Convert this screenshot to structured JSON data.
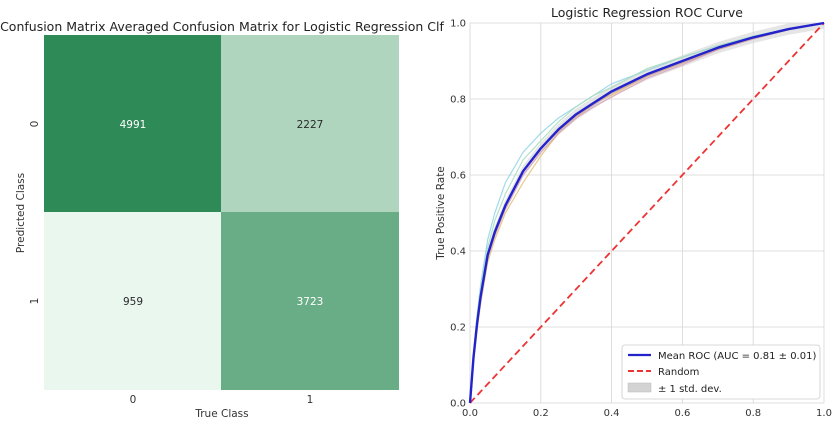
{
  "chart_data": [
    {
      "type": "heatmap",
      "title": "Confusion Matrix Averaged Confusion Matrix for Logistic Regression Clf",
      "xlabel": "True Class",
      "ylabel": "Predicted Class",
      "x_categories": [
        "0",
        "1"
      ],
      "y_categories": [
        "0",
        "1"
      ],
      "values": [
        [
          4991,
          2227
        ],
        [
          959,
          3723
        ]
      ],
      "colormap": "greens",
      "colors": {
        "high": "#2e8b57",
        "low": "#eaf7ef",
        "dark_text": "#2a2a2a",
        "light_text": "#ffffff"
      }
    },
    {
      "type": "line",
      "title": "Logistic Regression ROC Curve",
      "xlabel": "",
      "ylabel": "True Positive Rate",
      "xlim": [
        0.0,
        1.0
      ],
      "ylim": [
        0.0,
        1.0
      ],
      "xticks": [
        "0.0",
        "0.2",
        "0.4",
        "0.6",
        "0.8",
        "1.0"
      ],
      "yticks": [
        "0.0",
        "0.2",
        "0.4",
        "0.6",
        "0.8",
        "1.0"
      ],
      "grid": true,
      "legend_position": "bottom-right",
      "x": [
        0.0,
        0.01,
        0.02,
        0.03,
        0.05,
        0.07,
        0.1,
        0.15,
        0.2,
        0.25,
        0.3,
        0.35,
        0.4,
        0.5,
        0.6,
        0.7,
        0.8,
        0.9,
        1.0
      ],
      "series": [
        {
          "name": "Mean ROC (AUC = 0.81 ± 0.01)",
          "color": "#2323cc",
          "style": "solid",
          "y": [
            0.0,
            0.12,
            0.21,
            0.28,
            0.39,
            0.45,
            0.52,
            0.61,
            0.67,
            0.72,
            0.76,
            0.79,
            0.82,
            0.865,
            0.9,
            0.935,
            0.962,
            0.984,
            1.0
          ]
        },
        {
          "name": "Random",
          "color": "#ee3333",
          "style": "dashed",
          "y": [
            0.0,
            0.01,
            0.02,
            0.03,
            0.05,
            0.07,
            0.1,
            0.15,
            0.2,
            0.25,
            0.3,
            0.35,
            0.4,
            0.5,
            0.6,
            0.7,
            0.8,
            0.9,
            1.0
          ]
        }
      ],
      "std_band": {
        "name": "± 1 std. dev.",
        "color": "#d3d3d3",
        "delta": 0.015
      },
      "fold_curves": [
        {
          "color": "#8fd3e6",
          "y": [
            0.0,
            0.13,
            0.23,
            0.31,
            0.43,
            0.5,
            0.58,
            0.66,
            0.71,
            0.75,
            0.78,
            0.81,
            0.84,
            0.875,
            0.91,
            0.94,
            0.965,
            0.985,
            1.0
          ]
        },
        {
          "color": "#a8dcc0",
          "y": [
            0.0,
            0.12,
            0.22,
            0.3,
            0.41,
            0.48,
            0.55,
            0.64,
            0.69,
            0.74,
            0.78,
            0.81,
            0.83,
            0.88,
            0.91,
            0.94,
            0.965,
            0.985,
            1.0
          ]
        },
        {
          "color": "#e3c27a",
          "y": [
            0.0,
            0.11,
            0.19,
            0.26,
            0.37,
            0.43,
            0.5,
            0.58,
            0.65,
            0.71,
            0.75,
            0.79,
            0.81,
            0.86,
            0.895,
            0.93,
            0.96,
            0.982,
            1.0
          ]
        },
        {
          "color": "#d9a3b7",
          "y": [
            0.0,
            0.11,
            0.2,
            0.27,
            0.38,
            0.44,
            0.51,
            0.6,
            0.66,
            0.71,
            0.75,
            0.78,
            0.805,
            0.855,
            0.89,
            0.93,
            0.958,
            0.982,
            1.0
          ]
        },
        {
          "color": "#c9a0a0",
          "y": [
            0.0,
            0.12,
            0.21,
            0.28,
            0.39,
            0.45,
            0.52,
            0.61,
            0.67,
            0.715,
            0.755,
            0.785,
            0.815,
            0.86,
            0.895,
            0.93,
            0.96,
            0.983,
            1.0
          ]
        }
      ]
    }
  ]
}
